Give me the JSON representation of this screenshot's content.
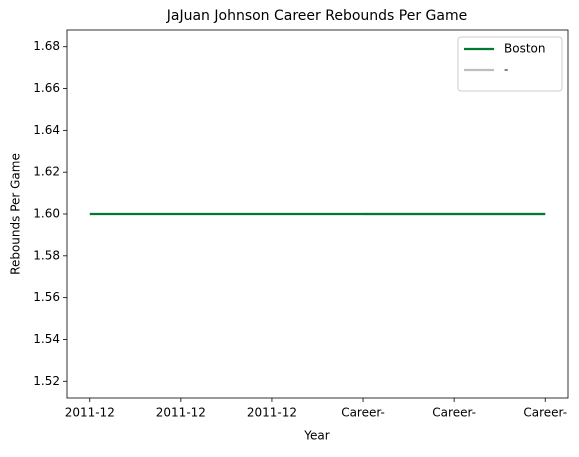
{
  "chart_data": {
    "type": "line",
    "title": "JaJuan Johnson Career Rebounds Per Game",
    "x_label": "Year",
    "y_label": "Rebounds Per Game",
    "categories": [
      "2011-12",
      "2011-12",
      "2011-12",
      "Career-",
      "Career-",
      "Career-"
    ],
    "series": [
      {
        "name": "Boston",
        "color": "#007a33",
        "values": [
          1.6,
          1.6,
          1.6,
          1.6,
          1.6,
          1.6
        ]
      },
      {
        "name": "-",
        "color": "#bebebe",
        "values": [
          null,
          null,
          null,
          1.6,
          1.6,
          1.6
        ]
      }
    ],
    "ylim": [
      1.512,
      1.688
    ],
    "yticks": [
      1.52,
      1.54,
      1.56,
      1.58,
      {
        "value": 1.6,
        "label": "1.60"
      },
      1.62,
      1.64,
      1.66,
      1.68
    ],
    "legend": "upper right",
    "grid": false
  }
}
